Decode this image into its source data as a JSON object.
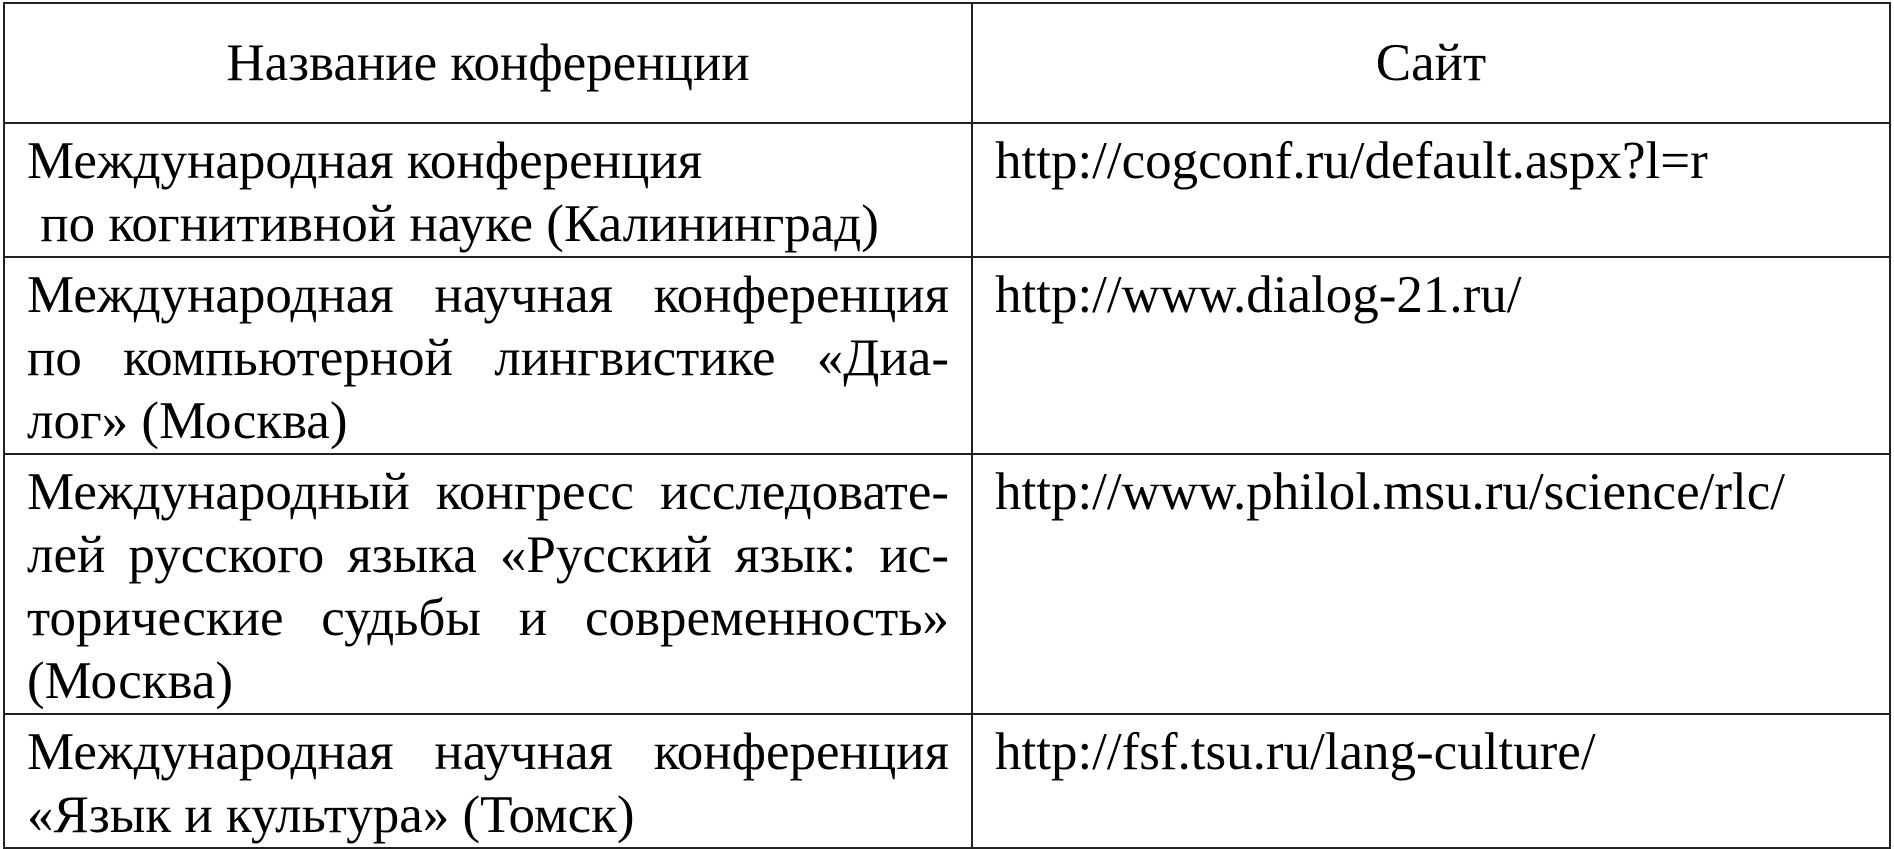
{
  "table": {
    "headers": [
      "Название конференции",
      "Сайт"
    ],
    "rows": [
      {
        "name_lines": [
          "Международная конференция",
          " по когнитивной науке (Калининград)"
        ],
        "site": "http://cogconf.ru/default.aspx?l=r"
      },
      {
        "name_lines": [
          "Международная научная конференция",
          "по компьютерной лингвистике «Диа-",
          "лог» (Москва)"
        ],
        "site": "http://www.dialog-21.ru/"
      },
      {
        "name_lines": [
          "Международный конгресс исследовате-",
          "лей русского языка «Русский язык: ис-",
          "торические судьбы и современность»",
          "(Москва)"
        ],
        "site": "http://www.philol.msu.ru/science/rlc/"
      },
      {
        "name_lines": [
          "Международная научная конференция",
          "«Язык и культура» (Томск)"
        ],
        "site": "http://fsf.tsu.ru/lang-culture/"
      }
    ]
  }
}
